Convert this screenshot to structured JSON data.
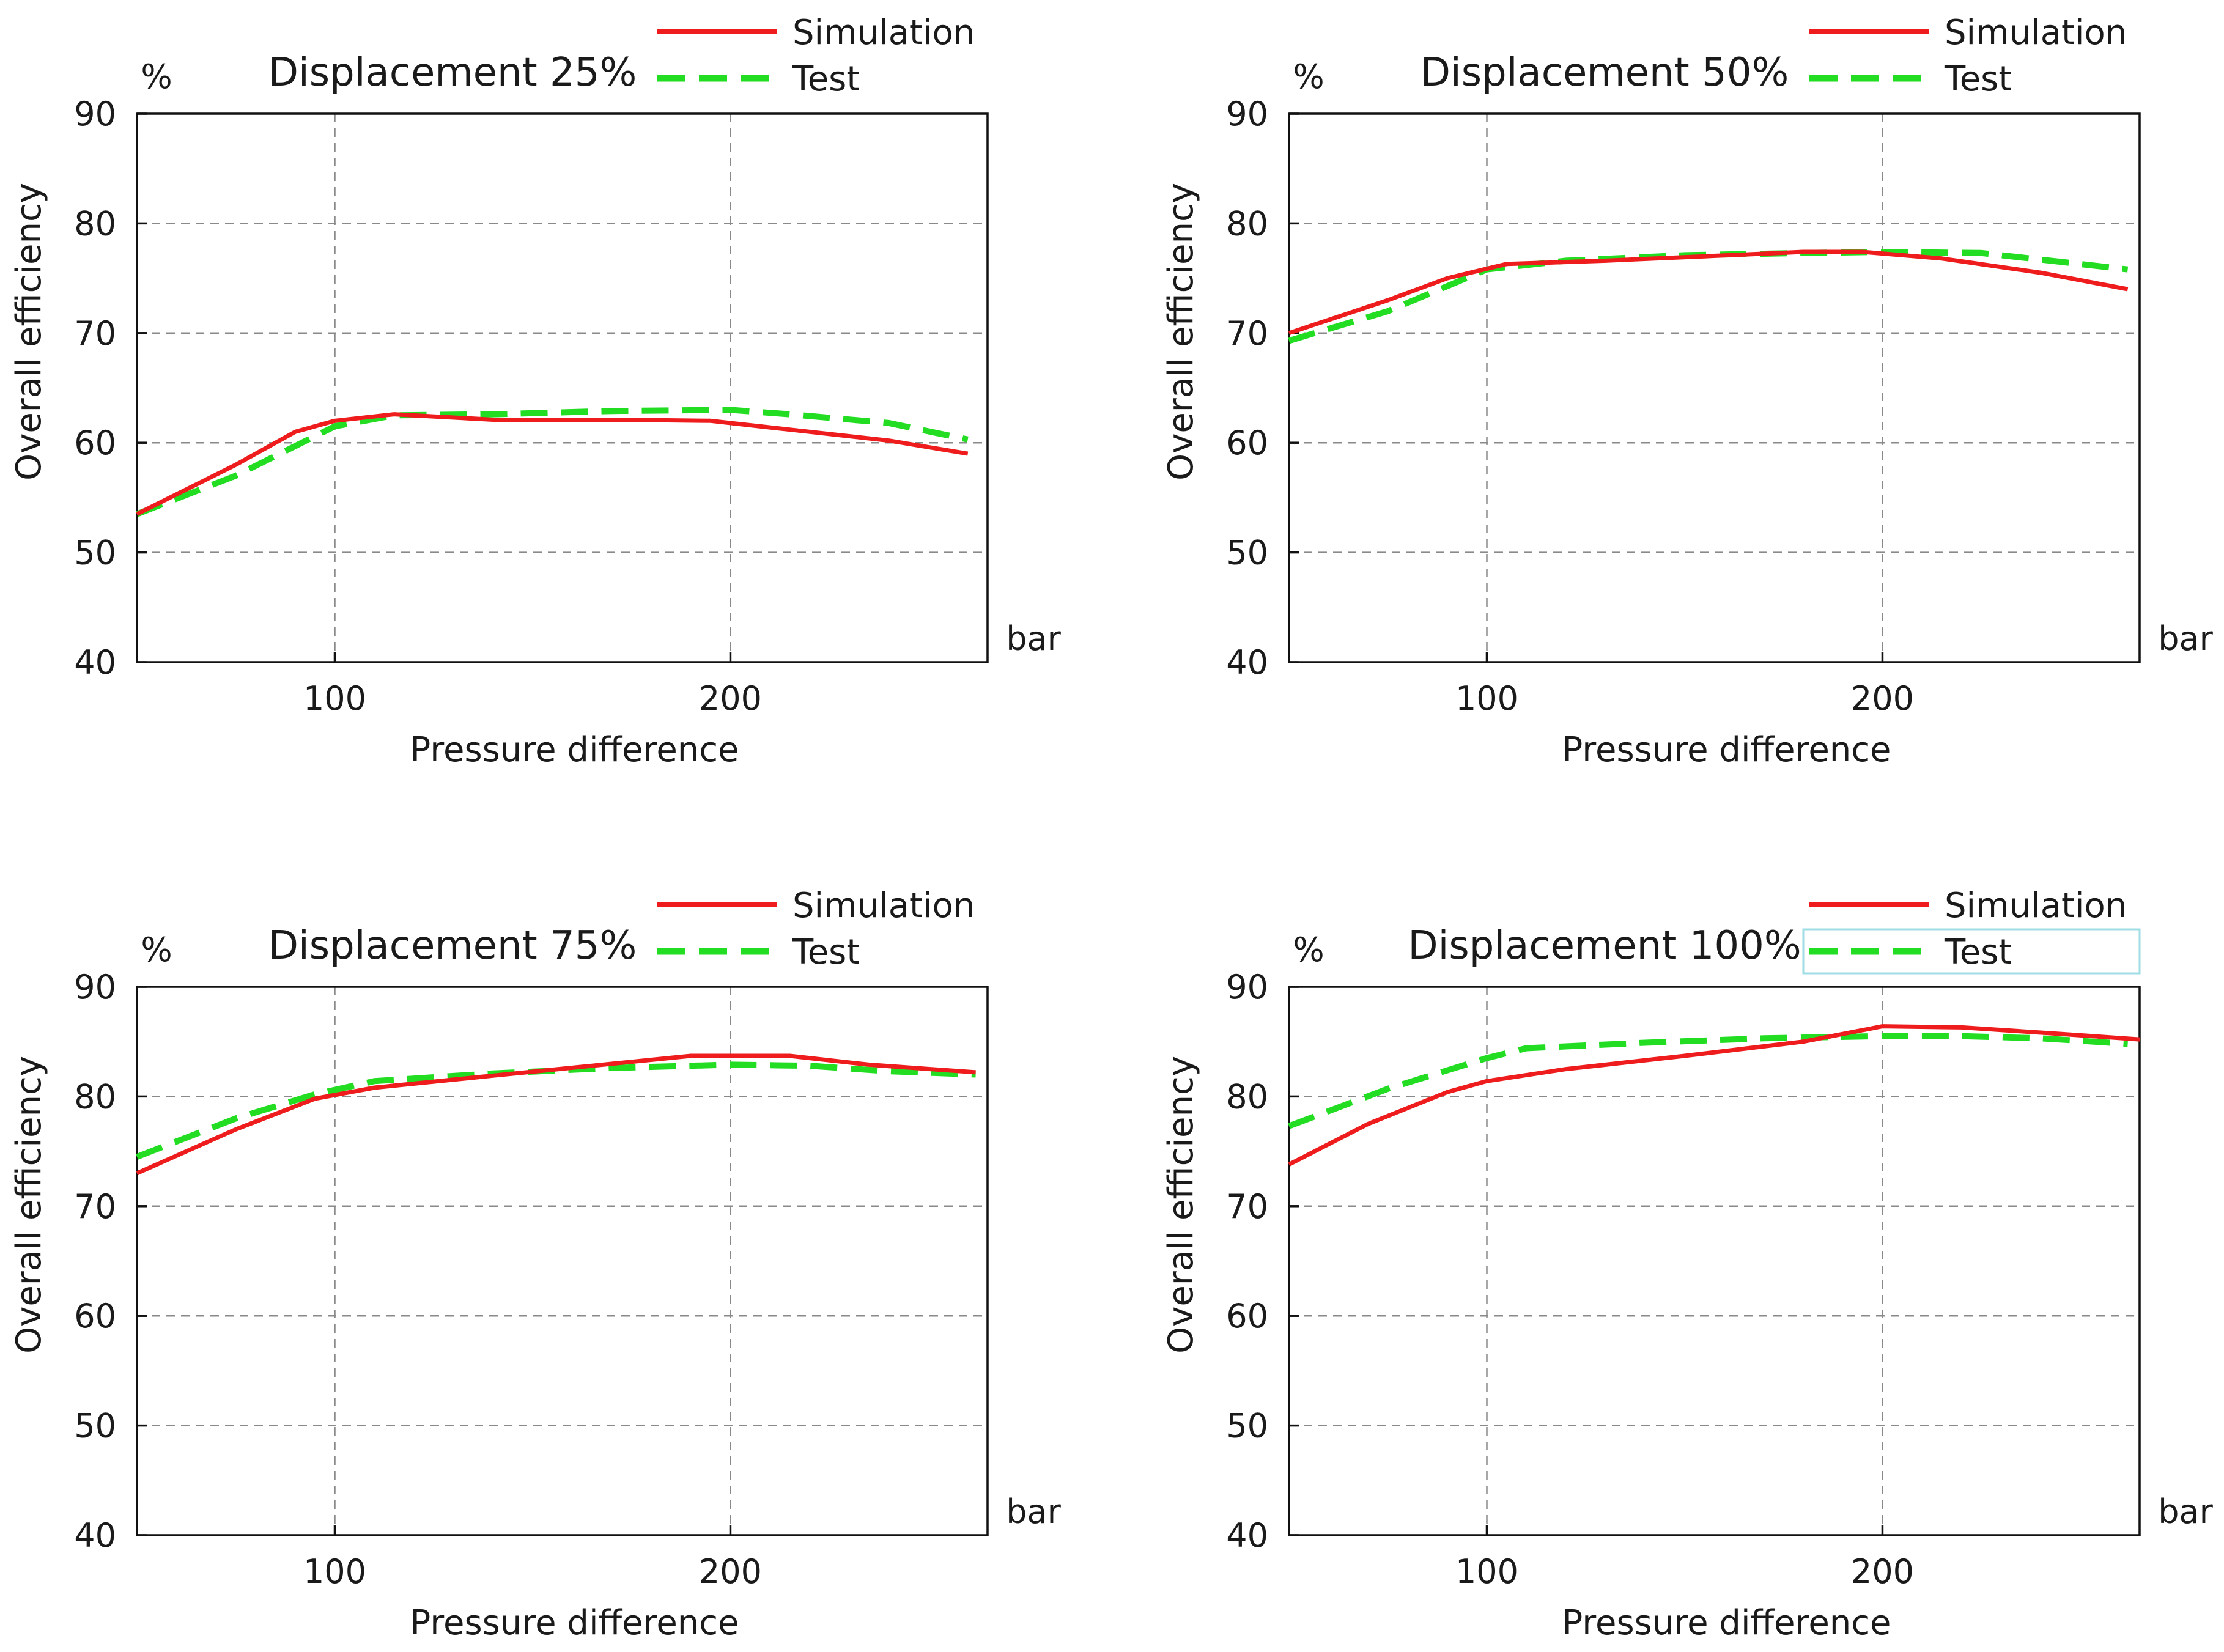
{
  "colors": {
    "simulation": "#ee1c1c",
    "test": "#22dd22",
    "grid": "#8a8a8a",
    "frame": "#111111",
    "legend_box_border": "#9fdde6"
  },
  "chart_data": [
    {
      "type": "line",
      "title": "Displacement 25%",
      "xlabel": "Pressure difference",
      "ylabel": "Overall efficiency",
      "x_unit": "bar",
      "y_unit": "%",
      "xlim": [
        50,
        265
      ],
      "ylim": [
        40,
        90
      ],
      "xticks": [
        100,
        200
      ],
      "yticks": [
        40,
        50,
        60,
        70,
        80,
        90
      ],
      "legend_box": false,
      "series": [
        {
          "name": "Simulation",
          "style": "solid",
          "x": [
            50,
            75,
            90,
            100,
            115,
            140,
            170,
            195,
            215,
            240,
            260
          ],
          "y": [
            53.5,
            58,
            61,
            62,
            62.6,
            62.1,
            62.1,
            62.0,
            61.2,
            60.2,
            59.0
          ]
        },
        {
          "name": "Test",
          "style": "dashed",
          "x": [
            50,
            75,
            100,
            115,
            140,
            170,
            200,
            215,
            240,
            260
          ],
          "y": [
            53.5,
            57,
            61.5,
            62.5,
            62.6,
            62.9,
            63.0,
            62.6,
            61.8,
            60.3
          ]
        }
      ]
    },
    {
      "type": "line",
      "title": "Displacement 50%",
      "xlabel": "Pressure difference",
      "ylabel": "Overall efficiency",
      "x_unit": "bar",
      "y_unit": "%",
      "xlim": [
        50,
        265
      ],
      "ylim": [
        40,
        90
      ],
      "xticks": [
        100,
        200
      ],
      "yticks": [
        40,
        50,
        60,
        70,
        80,
        90
      ],
      "legend_box": false,
      "series": [
        {
          "name": "Simulation",
          "style": "solid",
          "x": [
            50,
            75,
            90,
            105,
            130,
            155,
            180,
            195,
            215,
            240,
            262
          ],
          "y": [
            70,
            73,
            75,
            76.3,
            76.6,
            77,
            77.4,
            77.4,
            76.8,
            75.5,
            74.0
          ]
        },
        {
          "name": "Test",
          "style": "dashed",
          "x": [
            50,
            75,
            100,
            120,
            150,
            180,
            200,
            225,
            245,
            262
          ],
          "y": [
            69.3,
            72,
            75.8,
            76.6,
            77.1,
            77.3,
            77.4,
            77.3,
            76.5,
            75.8
          ]
        }
      ]
    },
    {
      "type": "line",
      "title": "Displacement 75%",
      "xlabel": "Pressure difference",
      "ylabel": "Overall efficiency",
      "x_unit": "bar",
      "y_unit": "%",
      "xlim": [
        50,
        265
      ],
      "ylim": [
        40,
        90
      ],
      "xticks": [
        100,
        200
      ],
      "yticks": [
        40,
        50,
        60,
        70,
        80,
        90
      ],
      "legend_box": false,
      "series": [
        {
          "name": "Simulation",
          "style": "solid",
          "x": [
            50,
            75,
            95,
            110,
            140,
            165,
            190,
            215,
            235,
            262
          ],
          "y": [
            73,
            77,
            79.8,
            80.8,
            81.9,
            82.8,
            83.7,
            83.7,
            82.9,
            82.2
          ]
        },
        {
          "name": "Test",
          "style": "dashed",
          "x": [
            50,
            75,
            95,
            110,
            140,
            170,
            200,
            220,
            240,
            262
          ],
          "y": [
            74.5,
            78,
            80.2,
            81.4,
            82.1,
            82.6,
            82.9,
            82.8,
            82.3,
            82.0
          ]
        }
      ]
    },
    {
      "type": "line",
      "title": "Displacement 100%",
      "xlabel": "Pressure difference",
      "ylabel": "Overall efficiency",
      "x_unit": "bar",
      "y_unit": "%",
      "xlim": [
        50,
        265
      ],
      "ylim": [
        40,
        90
      ],
      "xticks": [
        100,
        200
      ],
      "yticks": [
        40,
        50,
        60,
        70,
        80,
        90
      ],
      "legend_box": true,
      "series": [
        {
          "name": "Simulation",
          "style": "solid",
          "x": [
            50,
            70,
            90,
            100,
            120,
            150,
            180,
            200,
            220,
            245,
            265
          ],
          "y": [
            73.8,
            77.5,
            80.4,
            81.4,
            82.5,
            83.7,
            85.0,
            86.4,
            86.3,
            85.7,
            85.2
          ]
        },
        {
          "name": "Test",
          "style": "dashed",
          "x": [
            50,
            75,
            100,
            110,
            140,
            170,
            200,
            220,
            240,
            262
          ],
          "y": [
            77.3,
            80.7,
            83.5,
            84.4,
            84.9,
            85.3,
            85.5,
            85.5,
            85.3,
            84.8
          ]
        }
      ]
    }
  ]
}
